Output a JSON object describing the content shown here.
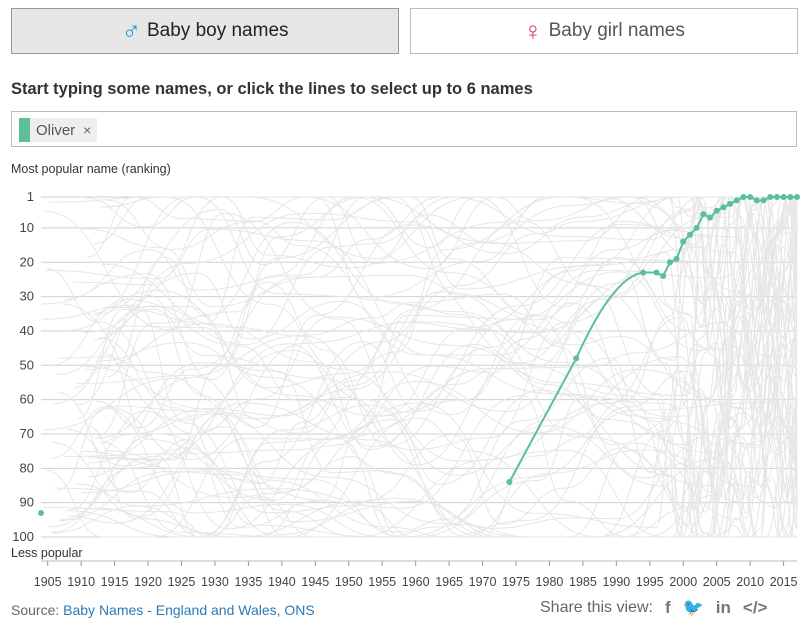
{
  "tabs": {
    "boy": {
      "symbol": "♂",
      "label": "Baby boy names"
    },
    "girl": {
      "symbol": "♀",
      "label": "Baby girl names"
    }
  },
  "instructions": "Start typing some names, or click the lines to select up to 6 names",
  "search": {
    "selected": [
      "Oliver"
    ],
    "remove_symbol": "×",
    "placeholder": ""
  },
  "colors": {
    "selected_line": "#5bbf98",
    "background_lines": "#e6e6e6",
    "grid": "#d0d0d0"
  },
  "chart_data": {
    "type": "line",
    "title": "",
    "ylabel_top": "Most popular name (ranking)",
    "ylabel_bottom": "Less popular",
    "y_ticks": [
      1,
      10,
      20,
      30,
      40,
      50,
      60,
      70,
      80,
      90,
      100
    ],
    "ylim": [
      1,
      100
    ],
    "y_inverted": true,
    "xlim": [
      1904,
      2017
    ],
    "x_ticks": [
      1905,
      1910,
      1915,
      1920,
      1925,
      1930,
      1935,
      1940,
      1945,
      1950,
      1955,
      1960,
      1965,
      1970,
      1975,
      1980,
      1985,
      1990,
      1995,
      2000,
      2005,
      2010,
      2015
    ],
    "grid": true,
    "series": [
      {
        "name": "Oliver",
        "highlighted": true,
        "x": [
          1904,
          1974,
          1984,
          1994,
          1996,
          1997,
          1998,
          1999,
          2000,
          2001,
          2002,
          2003,
          2004,
          2005,
          2006,
          2007,
          2008,
          2009,
          2010,
          2011,
          2012,
          2013,
          2014,
          2015,
          2016,
          2017
        ],
        "y": [
          93,
          84,
          48,
          23,
          23,
          24,
          20,
          19,
          14,
          12,
          10,
          6,
          7,
          5,
          4,
          3,
          2,
          1,
          1,
          2,
          2,
          1,
          1,
          1,
          1,
          1
        ]
      }
    ]
  },
  "footer": {
    "source_label": "Source:",
    "source_link": "Baby Names - England and Wales, ONS",
    "share_label": "Share this view:",
    "share_icons": [
      {
        "name": "facebook-icon",
        "glyph": "f"
      },
      {
        "name": "twitter-icon",
        "glyph": "🐦"
      },
      {
        "name": "linkedin-icon",
        "glyph": "in"
      },
      {
        "name": "embed-icon",
        "glyph": "</>"
      }
    ]
  }
}
